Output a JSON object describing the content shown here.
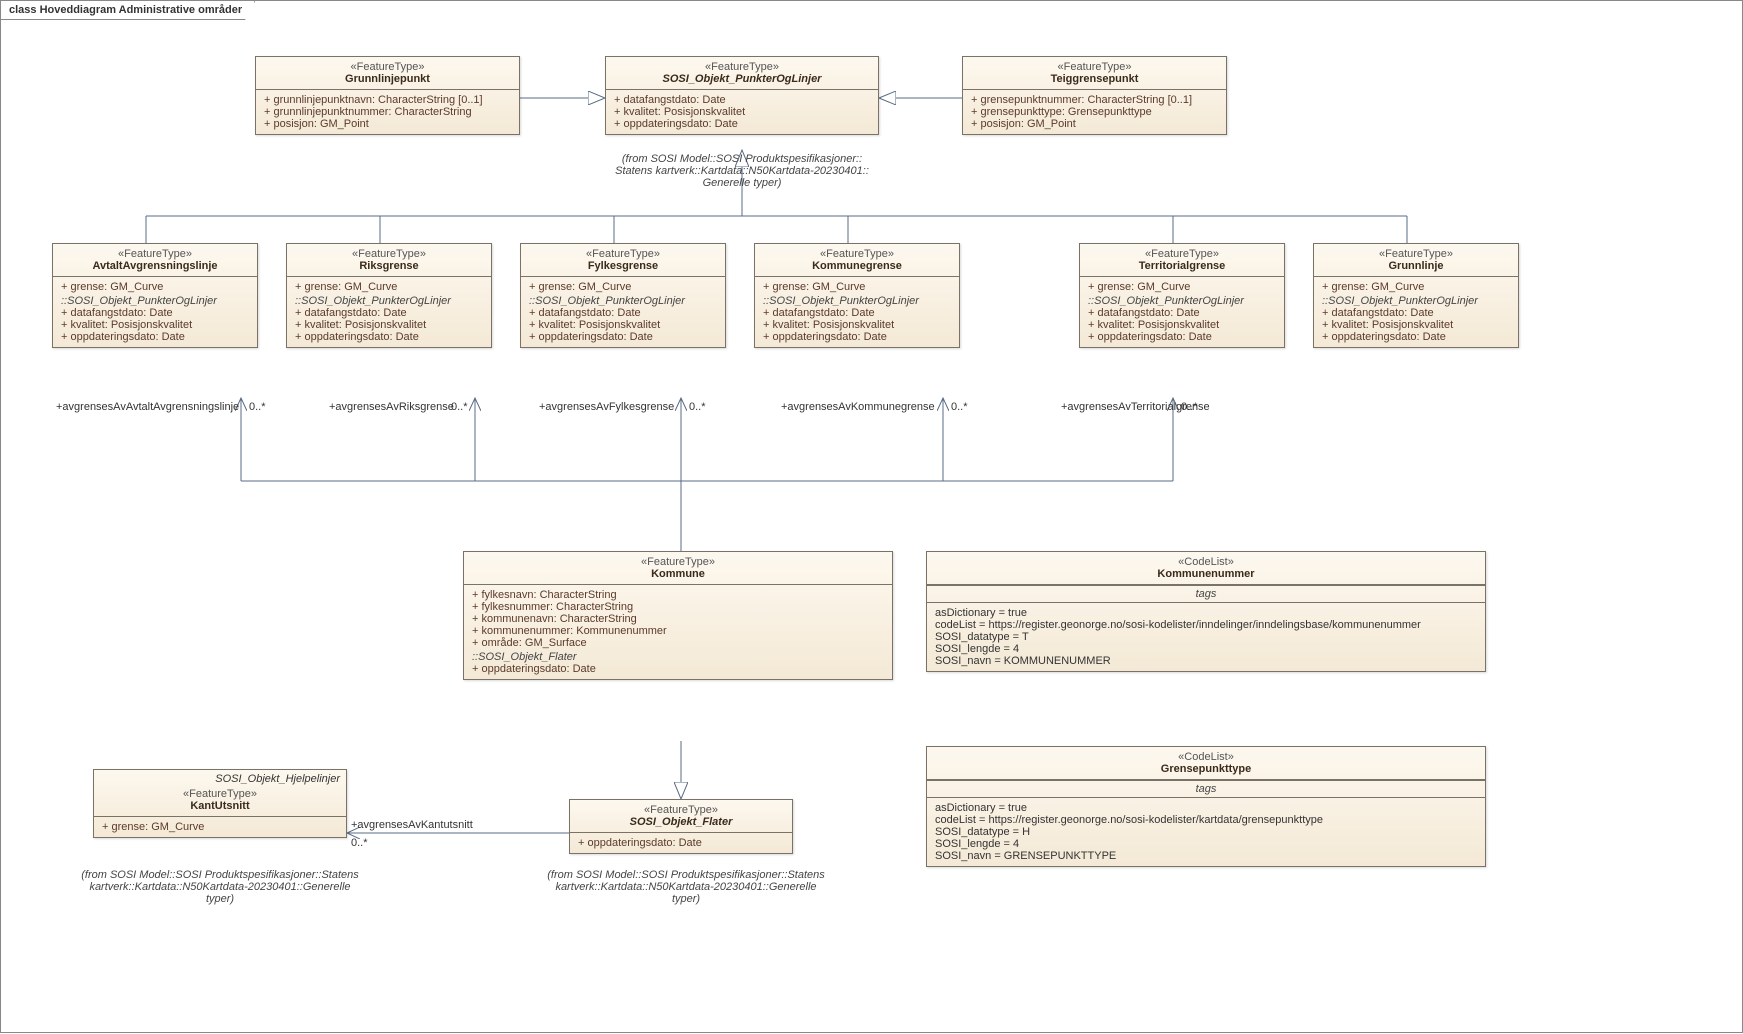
{
  "diagram": {
    "title": "class Hoveddiagram Administrative områder"
  },
  "grunnlinjepunkt": {
    "stereo": "«FeatureType»",
    "name": "Grunnlinjepunkt",
    "attrs": [
      "+   grunnlinjepunktnavn: CharacterString [0..1]",
      "+   grunnlinjepunktnummer: CharacterString",
      "+   posisjon: GM_Point"
    ]
  },
  "sosi_pol": {
    "stereo": "«FeatureType»",
    "name": "SOSI_Objekt_PunkterOgLinjer",
    "attrs": [
      "+   datafangstdato: Date",
      "+   kvalitet: Posisjonskvalitet",
      "+   oppdateringsdato: Date"
    ]
  },
  "sosi_pol_note": "(from SOSI Model::SOSI Produktspesifikasjoner::\nStatens kartverk::Kartdata::N50Kartdata-20230401::\nGenerelle typer)",
  "teiggrense": {
    "stereo": "«FeatureType»",
    "name": "Teiggrensepunkt",
    "attrs": [
      "+   grensepunktnummer: CharacterString [0..1]",
      "+   grensepunkttype: Grensepunkttype",
      "+   posisjon: GM_Point"
    ]
  },
  "row2_common_attr": "+   grense: GM_Curve",
  "row2_sep": "::SOSI_Objekt_PunkterOgLinjer",
  "row2_inherited": [
    "+   datafangstdato: Date",
    "+   kvalitet: Posisjonskvalitet",
    "+   oppdateringsdato: Date"
  ],
  "avtalt": {
    "stereo": "«FeatureType»",
    "name": "AvtaltAvgrensningslinje"
  },
  "riks": {
    "stereo": "«FeatureType»",
    "name": "Riksgrense"
  },
  "fylke": {
    "stereo": "«FeatureType»",
    "name": "Fylkesgrense"
  },
  "kommunegr": {
    "stereo": "«FeatureType»",
    "name": "Kommunegrense"
  },
  "terr": {
    "stereo": "«FeatureType»",
    "name": "Territorialgrense"
  },
  "grunnlinje": {
    "stereo": "«FeatureType»",
    "name": "Grunnlinje"
  },
  "assoc": {
    "avtalt": "+avgrensesAvAvtaltAvgrensningslinje",
    "riks": "+avgrensesAvRiksgrense",
    "fylke": "+avgrensesAvFylkesgrense",
    "komm": "+avgrensesAvKommunegrense",
    "terr": "+avgrensesAvTerritorialgrense",
    "kant": "+avgrensesAvKantutsnitt",
    "mult": "0..*"
  },
  "kommune": {
    "stereo": "«FeatureType»",
    "name": "Kommune",
    "attrs": [
      "+   fylkesnavn: CharacterString",
      "+   fylkesnummer: CharacterString",
      "+   kommunenavn: CharacterString",
      "+   kommunenummer: Kommunenummer",
      "+   område: GM_Surface"
    ],
    "sep": "::SOSI_Objekt_Flater",
    "inh": [
      "+   oppdateringsdato: Date"
    ]
  },
  "kantutsnitt": {
    "frame": "SOSI_Objekt_Hjelpelinjer",
    "stereo": "«FeatureType»",
    "name": "KantUtsnitt",
    "attr": "+   grense: GM_Curve"
  },
  "kant_note": "(from SOSI Model::SOSI Produktspesifikasjoner::Statens\nkartverk::Kartdata::N50Kartdata-20230401::Generelle\ntyper)",
  "sosi_flater": {
    "stereo": "«FeatureType»",
    "name": "SOSI_Objekt_Flater",
    "attr": "+   oppdateringsdato: Date"
  },
  "flater_note": "(from SOSI Model::SOSI Produktspesifikasjoner::Statens\nkartverk::Kartdata::N50Kartdata-20230401::Generelle\ntyper)",
  "kommunenr": {
    "stereo": "«CodeList»",
    "name": "Kommunenummer",
    "tags_hdr": "tags",
    "tags": [
      "asDictionary = true",
      "codeList = https://register.geonorge.no/sosi-kodelister/inndelinger/inndelingsbase/kommunenummer",
      "SOSI_datatype = T",
      "SOSI_lengde = 4",
      "SOSI_navn = KOMMUNENUMMER"
    ]
  },
  "grensepkt": {
    "stereo": "«CodeList»",
    "name": "Grensepunkttype",
    "tags_hdr": "tags",
    "tags": [
      "asDictionary = true",
      "codeList = https://register.geonorge.no/sosi-kodelister/kartdata/grensepunkttype",
      "SOSI_datatype = H",
      "SOSI_lengde = 4",
      "SOSI_navn = GRENSEPUNKTTYPE"
    ]
  },
  "colors": {
    "line": "#5a6b84",
    "fill_top": "#fdf8ef",
    "fill_bot": "#f4e9d6",
    "border": "#7a7266"
  }
}
